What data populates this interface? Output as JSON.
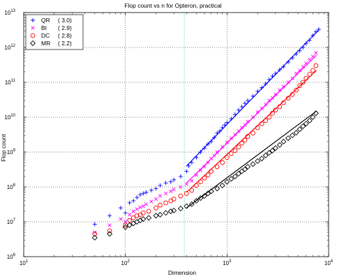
{
  "chart_data": {
    "type": "scatter",
    "title": "Flop count vs n for Opteron, practical",
    "xlabel": "Dimension",
    "ylabel": "Flop count",
    "xscale": "log",
    "yscale": "log",
    "xlim": [
      10,
      10000
    ],
    "ylim": [
      1000000,
      10000000000000
    ],
    "grid": true,
    "legend_position": "top-left",
    "x_ticks": [
      {
        "base": "10",
        "exp": "1",
        "value": 10
      },
      {
        "base": "10",
        "exp": "2",
        "value": 100
      },
      {
        "base": "10",
        "exp": "3",
        "value": 1000
      },
      {
        "base": "10",
        "exp": "4",
        "value": 10000
      }
    ],
    "y_ticks": [
      {
        "base": "10",
        "exp": "6",
        "value": 1000000
      },
      {
        "base": "10",
        "exp": "7",
        "value": 10000000
      },
      {
        "base": "10",
        "exp": "8",
        "value": 100000000
      },
      {
        "base": "10",
        "exp": "9",
        "value": 1000000000
      },
      {
        "base": "10",
        "exp": "10",
        "value": 10000000000
      },
      {
        "base": "10",
        "exp": "11",
        "value": 100000000000
      },
      {
        "base": "10",
        "exp": "12",
        "value": 1000000000000
      },
      {
        "base": "10",
        "exp": "13",
        "value": 10000000000000
      }
    ],
    "reference_line_x": 380,
    "series": [
      {
        "name": "QR",
        "label": "QR",
        "exponent_label": "( 3.0)",
        "marker": "plus",
        "color": "#0000ff",
        "points": [
          [
            50,
            8500000.0
          ],
          [
            70,
            15000000.0
          ],
          [
            90,
            25000000.0
          ],
          [
            100,
            18000000.0
          ],
          [
            110,
            35000000.0
          ],
          [
            120,
            40000000.0
          ],
          [
            130,
            50000000.0
          ],
          [
            140,
            60000000.0
          ],
          [
            150,
            65000000.0
          ],
          [
            160,
            70000000.0
          ],
          [
            180,
            80000000.0
          ],
          [
            200,
            90000000.0
          ],
          [
            220,
            110000000.0
          ],
          [
            250,
            130000000.0
          ],
          [
            280,
            140000000.0
          ],
          [
            300,
            160000000.0
          ],
          [
            350,
            200000000.0
          ],
          [
            400,
            280000000.0
          ],
          [
            420,
            400000000.0
          ],
          [
            450,
            500000000.0
          ],
          [
            500,
            700000000.0
          ],
          [
            550,
            1000000000.0
          ],
          [
            600,
            1300000000.0
          ],
          [
            650,
            1700000000.0
          ],
          [
            700,
            2000000000.0
          ],
          [
            750,
            2600000000.0
          ],
          [
            800,
            3500000000.0
          ],
          [
            850,
            4000000000.0
          ],
          [
            900,
            5000000000.0
          ],
          [
            950,
            6000000000.0
          ],
          [
            1000,
            7000000000.0
          ],
          [
            1100,
            9000000000.0
          ],
          [
            1200,
            12000000000.0
          ],
          [
            1300,
            16000000000.0
          ],
          [
            1400,
            20000000000.0
          ],
          [
            1500,
            25000000000.0
          ],
          [
            1600,
            30000000000.0
          ],
          [
            1800,
            40000000000.0
          ],
          [
            2000,
            55000000000.0
          ],
          [
            2200,
            70000000000.0
          ],
          [
            2400,
            90000000000.0
          ],
          [
            2600,
            120000000000.0
          ],
          [
            2800,
            150000000000.0
          ],
          [
            3000,
            180000000000.0
          ],
          [
            3300,
            230000000000.0
          ],
          [
            3600,
            280000000000.0
          ],
          [
            4000,
            380000000000.0
          ],
          [
            4400,
            500000000000.0
          ],
          [
            4800,
            650000000000.0
          ],
          [
            5200,
            800000000000.0
          ],
          [
            5600,
            1000000000000.0
          ],
          [
            6000,
            1300000000000.0
          ],
          [
            6500,
            1600000000000.0
          ],
          [
            7000,
            2200000000000.0
          ],
          [
            7500,
            2800000000000.0
          ],
          [
            8000,
            3300000000000.0
          ]
        ],
        "fit": [
          [
            400,
            400000000.0
          ],
          [
            8000,
            3200000000000.0
          ]
        ]
      },
      {
        "name": "BI",
        "label": "BI",
        "exponent_label": "( 2.9)",
        "marker": "x",
        "color": "#ff00ff",
        "points": [
          [
            50,
            5000000.0
          ],
          [
            70,
            8000000.0
          ],
          [
            90,
            12000000.0
          ],
          [
            100,
            10000000.0
          ],
          [
            110,
            16000000.0
          ],
          [
            120,
            20000000.0
          ],
          [
            130,
            23000000.0
          ],
          [
            140,
            26000000.0
          ],
          [
            150,
            28000000.0
          ],
          [
            160,
            32000000.0
          ],
          [
            180,
            38000000.0
          ],
          [
            200,
            45000000.0
          ],
          [
            220,
            55000000.0
          ],
          [
            250,
            65000000.0
          ],
          [
            280,
            75000000.0
          ],
          [
            300,
            85000000.0
          ],
          [
            350,
            100000000.0
          ],
          [
            400,
            120000000.0
          ],
          [
            450,
            150000000.0
          ],
          [
            500,
            220000000.0
          ],
          [
            550,
            300000000.0
          ],
          [
            600,
            380000000.0
          ],
          [
            650,
            500000000.0
          ],
          [
            700,
            650000000.0
          ],
          [
            750,
            800000000.0
          ],
          [
            800,
            1000000000.0
          ],
          [
            900,
            1400000000.0
          ],
          [
            1000,
            1900000000.0
          ],
          [
            1100,
            2500000000.0
          ],
          [
            1200,
            3200000000.0
          ],
          [
            1300,
            4000000000.0
          ],
          [
            1400,
            5000000000.0
          ],
          [
            1500,
            6000000000.0
          ],
          [
            1600,
            7500000000.0
          ],
          [
            1800,
            10000000000.0
          ],
          [
            2000,
            14000000000.0
          ],
          [
            2200,
            18000000000.0
          ],
          [
            2400,
            23000000000.0
          ],
          [
            2600,
            30000000000.0
          ],
          [
            2800,
            36000000000.0
          ],
          [
            3000,
            45000000000.0
          ],
          [
            3300,
            60000000000.0
          ],
          [
            3600,
            75000000000.0
          ],
          [
            4000,
            100000000000.0
          ],
          [
            4400,
            130000000000.0
          ],
          [
            4800,
            180000000000.0
          ],
          [
            5200,
            220000000000.0
          ],
          [
            5600,
            280000000000.0
          ],
          [
            6000,
            350000000000.0
          ],
          [
            6500,
            450000000000.0
          ],
          [
            7000,
            550000000000.0
          ],
          [
            7500,
            700000000000.0
          ]
        ],
        "fit": [
          [
            400,
            130000000.0
          ],
          [
            7600,
            600000000000.0
          ]
        ]
      },
      {
        "name": "DC",
        "label": "DC",
        "exponent_label": "( 2.8)",
        "marker": "circle",
        "color": "#ff0000",
        "points": [
          [
            50,
            4500000.0
          ],
          [
            70,
            5500000.0
          ],
          [
            100,
            8000000.0
          ],
          [
            110,
            11000000.0
          ],
          [
            120,
            13000000.0
          ],
          [
            130,
            15000000.0
          ],
          [
            140,
            16000000.0
          ],
          [
            150,
            18000000.0
          ],
          [
            170,
            20000000.0
          ],
          [
            200,
            25000000.0
          ],
          [
            220,
            30000000.0
          ],
          [
            250,
            35000000.0
          ],
          [
            280,
            40000000.0
          ],
          [
            300,
            45000000.0
          ],
          [
            350,
            55000000.0
          ],
          [
            400,
            65000000.0
          ],
          [
            450,
            80000000.0
          ],
          [
            500,
            110000000.0
          ],
          [
            550,
            140000000.0
          ],
          [
            600,
            180000000.0
          ],
          [
            650,
            220000000.0
          ],
          [
            700,
            280000000.0
          ],
          [
            800,
            380000000.0
          ],
          [
            900,
            500000000.0
          ],
          [
            1000,
            700000000.0
          ],
          [
            1100,
            900000000.0
          ],
          [
            1200,
            1100000000.0
          ],
          [
            1300,
            1400000000.0
          ],
          [
            1400,
            1800000000.0
          ],
          [
            1500,
            2200000000.0
          ],
          [
            1600,
            2800000000.0
          ],
          [
            1800,
            3500000000.0
          ],
          [
            2000,
            5000000000.0
          ],
          [
            2200,
            6500000000.0
          ],
          [
            2400,
            8000000000.0
          ],
          [
            2600,
            10000000000.0
          ],
          [
            2800,
            13000000000.0
          ],
          [
            3000,
            16000000000.0
          ],
          [
            3300,
            20000000000.0
          ],
          [
            3600,
            26000000000.0
          ],
          [
            4000,
            35000000000.0
          ],
          [
            4400,
            45000000000.0
          ],
          [
            4800,
            60000000000.0
          ],
          [
            5200,
            80000000000.0
          ],
          [
            5600,
            100000000000.0
          ],
          [
            6000,
            130000000000.0
          ],
          [
            6500,
            170000000000.0
          ],
          [
            7000,
            220000000000.0
          ],
          [
            7500,
            300000000000.0
          ]
        ],
        "fit": [
          [
            400,
            70000000.0
          ],
          [
            7600,
            220000000000.0
          ]
        ]
      },
      {
        "name": "MR",
        "label": "MR",
        "exponent_label": "( 2.2)",
        "marker": "diamond",
        "color": "#000000",
        "points": [
          [
            50,
            3500000.0
          ],
          [
            70,
            4500000.0
          ],
          [
            100,
            7000000.0
          ],
          [
            110,
            8000000.0
          ],
          [
            120,
            9000000.0
          ],
          [
            130,
            10000000.0
          ],
          [
            140,
            11000000.0
          ],
          [
            150,
            12000000.0
          ],
          [
            170,
            13000000.0
          ],
          [
            200,
            15000000.0
          ],
          [
            220,
            16000000.0
          ],
          [
            250,
            18000000.0
          ],
          [
            280,
            20000000.0
          ],
          [
            300,
            21000000.0
          ],
          [
            350,
            24000000.0
          ],
          [
            400,
            28000000.0
          ],
          [
            450,
            32000000.0
          ],
          [
            500,
            40000000.0
          ],
          [
            550,
            48000000.0
          ],
          [
            600,
            55000000.0
          ],
          [
            650,
            65000000.0
          ],
          [
            700,
            75000000.0
          ],
          [
            800,
            90000000.0
          ],
          [
            900,
            110000000.0
          ],
          [
            1000,
            140000000.0
          ],
          [
            1100,
            170000000.0
          ],
          [
            1200,
            200000000.0
          ],
          [
            1300,
            240000000.0
          ],
          [
            1400,
            280000000.0
          ],
          [
            1500,
            320000000.0
          ],
          [
            1600,
            380000000.0
          ],
          [
            1800,
            450000000.0
          ],
          [
            2000,
            550000000.0
          ],
          [
            2200,
            650000000.0
          ],
          [
            2400,
            800000000.0
          ],
          [
            2600,
            950000000.0
          ],
          [
            2800,
            1100000000.0
          ],
          [
            3000,
            1300000000.0
          ],
          [
            3300,
            1600000000.0
          ],
          [
            3600,
            2000000000.0
          ],
          [
            4000,
            2500000000.0
          ],
          [
            4400,
            3000000000.0
          ],
          [
            4800,
            3600000000.0
          ],
          [
            5200,
            4500000000.0
          ],
          [
            5600,
            5500000000.0
          ],
          [
            6000,
            6500000000.0
          ],
          [
            6500,
            8000000000.0
          ],
          [
            7000,
            10000000000.0
          ],
          [
            7500,
            13000000000.0
          ]
        ],
        "fit": [
          [
            400,
            25000000.0
          ],
          [
            7600,
            15000000000.0
          ]
        ]
      }
    ]
  }
}
